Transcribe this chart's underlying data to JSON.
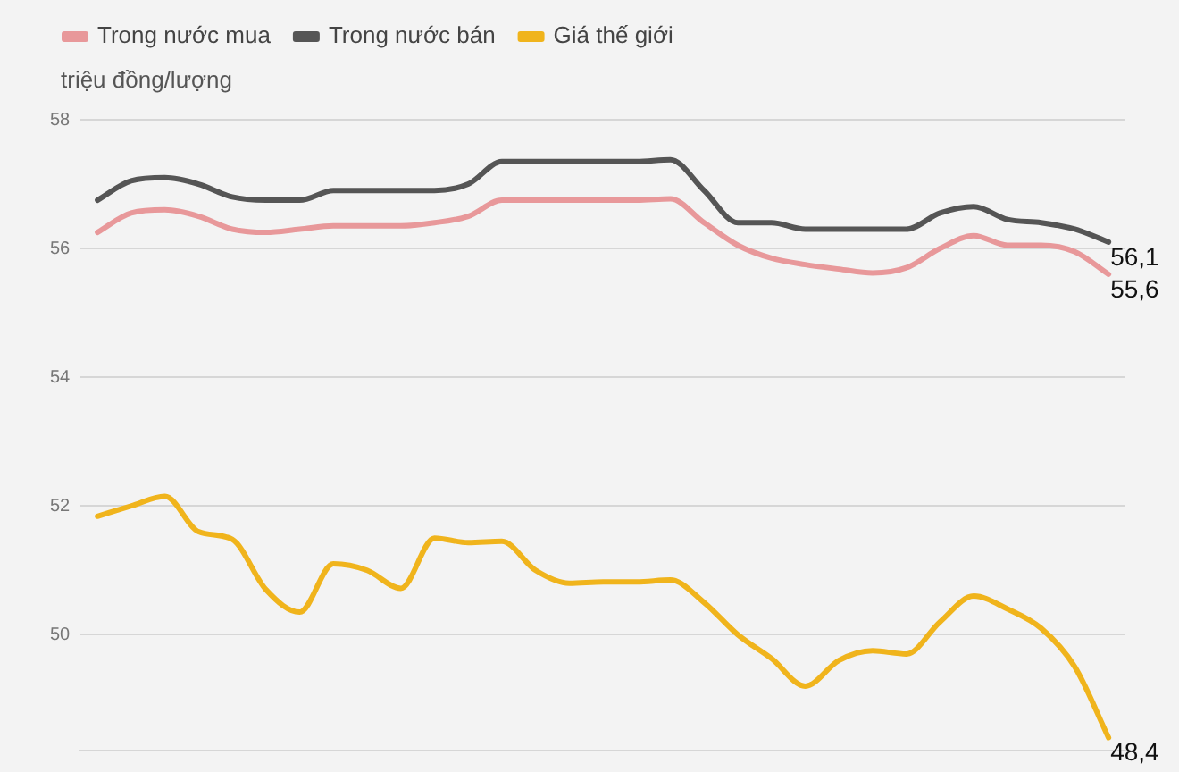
{
  "chart_data": {
    "type": "line",
    "ylabel": "triệu đồng/lượng",
    "categories": [
      null,
      null,
      null,
      null,
      null,
      null,
      null,
      null,
      null,
      null,
      null,
      null,
      null,
      null,
      null,
      null,
      null,
      null,
      null,
      null,
      null,
      null,
      null,
      null,
      null,
      null,
      null,
      null,
      null,
      null,
      null
    ],
    "series": [
      {
        "name": "Trong nước mua",
        "color": "#e8989a",
        "values": [
          56.25,
          56.55,
          56.6,
          56.5,
          56.3,
          56.25,
          56.3,
          56.35,
          56.35,
          56.35,
          56.4,
          56.5,
          56.75,
          56.75,
          56.75,
          56.75,
          56.75,
          56.77,
          56.4,
          56.05,
          55.85,
          55.75,
          55.68,
          55.62,
          55.7,
          56.0,
          56.2,
          56.05,
          56.05,
          55.95,
          55.6
        ],
        "value_labels": [
          null,
          null,
          null,
          null,
          null,
          null,
          null,
          null,
          null,
          null,
          null,
          null,
          null,
          null,
          null,
          null,
          null,
          null,
          null,
          null,
          null,
          null,
          null,
          null,
          null,
          null,
          null,
          null,
          null,
          null,
          "55,6"
        ]
      },
      {
        "name": "Trong nước bán",
        "color": "#555555",
        "values": [
          56.75,
          57.05,
          57.1,
          57.0,
          56.8,
          56.75,
          56.75,
          56.9,
          56.9,
          56.9,
          56.9,
          57.0,
          57.35,
          57.35,
          57.35,
          57.35,
          57.35,
          57.38,
          56.9,
          56.4,
          56.4,
          56.3,
          56.3,
          56.3,
          56.3,
          56.55,
          56.65,
          56.45,
          56.4,
          56.3,
          56.1
        ],
        "value_labels": [
          null,
          null,
          null,
          null,
          null,
          null,
          null,
          null,
          null,
          null,
          null,
          null,
          null,
          null,
          null,
          null,
          null,
          null,
          null,
          null,
          null,
          null,
          null,
          null,
          null,
          null,
          null,
          null,
          null,
          null,
          "56,1"
        ]
      },
      {
        "name": "Giá thế giới",
        "color": "#f0b41c",
        "values": [
          51.84,
          52.0,
          52.15,
          51.6,
          51.48,
          50.7,
          50.35,
          51.1,
          51.0,
          50.72,
          51.5,
          51.43,
          51.45,
          51.0,
          50.8,
          50.82,
          50.82,
          50.85,
          50.5,
          50.0,
          49.63,
          49.2,
          49.6,
          49.75,
          49.7,
          50.2,
          50.6,
          50.4,
          50.1,
          49.5,
          48.4
        ],
        "value_labels": [
          null,
          null,
          null,
          null,
          null,
          null,
          null,
          null,
          null,
          null,
          null,
          null,
          null,
          null,
          null,
          null,
          null,
          null,
          null,
          null,
          null,
          null,
          null,
          null,
          null,
          null,
          null,
          null,
          null,
          null,
          "48,4"
        ]
      }
    ],
    "ylim": [
      48.2,
      58
    ],
    "yticks": [
      50,
      52,
      54,
      56,
      58
    ],
    "grid": "y",
    "legend": "top left",
    "tick_labels": "y",
    "marker": "none",
    "line_style": "solid"
  }
}
